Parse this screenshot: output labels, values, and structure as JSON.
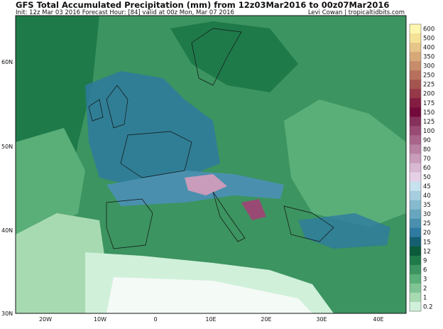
{
  "map": {
    "title": "GFS Total Accumulated Precipitation (mm) from 12z03Mar2016 to 00z07Mar2016",
    "subtitle": "Init: 12z Mar 03 2016   Forecast Hour: [84]   valid at 00z Mon, Mar 07 2016",
    "credit": "Levi Cowan | tropicaltidbits.com",
    "lat_labels": [
      "60N",
      "50N",
      "40N",
      "30N"
    ],
    "lon_labels": [
      "20W",
      "10W",
      "0",
      "10E",
      "20E",
      "30E",
      "40E"
    ],
    "colorbar": [
      {
        "label": "600",
        "color": "#fdf6b0"
      },
      {
        "label": "500",
        "color": "#f5e296"
      },
      {
        "label": "400",
        "color": "#e6c588"
      },
      {
        "label": "350",
        "color": "#d7a979"
      },
      {
        "label": "300",
        "color": "#c78c6a"
      },
      {
        "label": "250",
        "color": "#b6705c"
      },
      {
        "label": "225",
        "color": "#a55450"
      },
      {
        "label": "200",
        "color": "#953848"
      },
      {
        "label": "175",
        "color": "#841c42"
      },
      {
        "label": "150",
        "color": "#740a3c"
      },
      {
        "label": "125",
        "color": "#86305c"
      },
      {
        "label": "100",
        "color": "#984a74"
      },
      {
        "label": "90",
        "color": "#a8648a"
      },
      {
        "label": "80",
        "color": "#b880a2"
      },
      {
        "label": "70",
        "color": "#c89cba"
      },
      {
        "label": "60",
        "color": "#d8b8d2"
      },
      {
        "label": "50",
        "color": "#e6d0e6"
      },
      {
        "label": "45",
        "color": "#c6e2ee"
      },
      {
        "label": "40",
        "color": "#a6cedf"
      },
      {
        "label": "35",
        "color": "#86bacf"
      },
      {
        "label": "30",
        "color": "#68a6bf"
      },
      {
        "label": "25",
        "color": "#4a90ae"
      },
      {
        "label": "20",
        "color": "#2e7aa0"
      },
      {
        "label": "15",
        "color": "#145f72"
      },
      {
        "label": "12",
        "color": "#0b5a3a"
      },
      {
        "label": "9",
        "color": "#1f7a4a"
      },
      {
        "label": "6",
        "color": "#3c9460"
      },
      {
        "label": "3",
        "color": "#5aae78"
      },
      {
        "label": "2",
        "color": "#80c494"
      },
      {
        "label": "1",
        "color": "#a8dab2"
      },
      {
        "label": "0.2",
        "color": "#d0f0da"
      }
    ]
  }
}
